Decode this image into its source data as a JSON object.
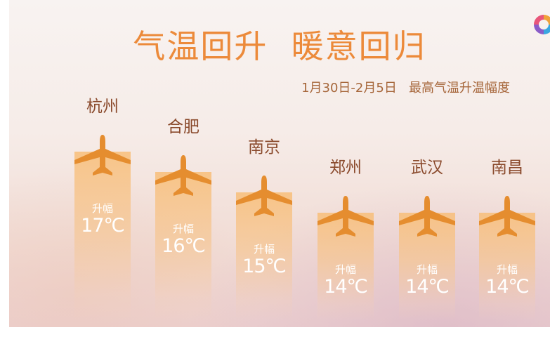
{
  "title": "气温回升  暖意回归",
  "subtitle": "1月30日-2月5日   最高气温升温幅度",
  "colors": {
    "accent": "#ec8a3a",
    "beam": "#f6b978",
    "plane": "#e58d2f",
    "label": "#ffffff",
    "city": "#8a4a2c"
  },
  "icons": [
    "airplane-icon",
    "app-logo-icon"
  ],
  "chart_data": {
    "type": "bar",
    "title": "气温回升  暖意回归",
    "subtitle": "1月30日-2月5日   最高气温升温幅度",
    "categories": [
      "杭州",
      "合肥",
      "南京",
      "郑州",
      "武汉",
      "南昌"
    ],
    "values": [
      17,
      16,
      15,
      14,
      14,
      14
    ],
    "value_prefix": "升幅",
    "unit": "℃",
    "ylim": [
      0,
      20
    ],
    "grid": false
  }
}
